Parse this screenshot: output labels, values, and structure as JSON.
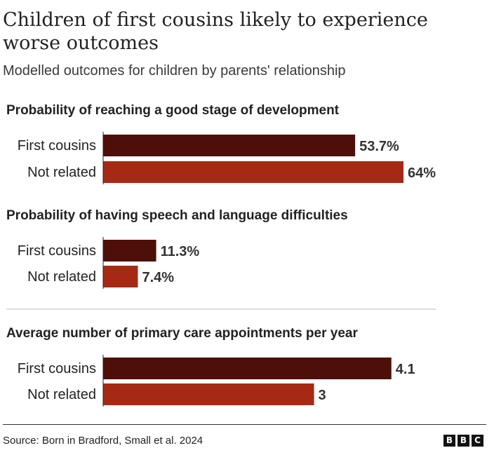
{
  "header": {
    "title": "Children of first cousins likely to experience worse outcomes",
    "subtitle": "Modelled outcomes for children by parents' relationship"
  },
  "footer": {
    "source": "Source: Born in Bradford, Small et al. 2024",
    "logo": [
      "B",
      "B",
      "C"
    ]
  },
  "colors": {
    "first_cousins": "#4e0f08",
    "not_related": "#a62a13",
    "text": "#222222"
  },
  "chart_data": [
    {
      "type": "bar",
      "orientation": "horizontal",
      "title": "Probability of reaching a good stage of development",
      "categories": [
        "First cousins",
        "Not related"
      ],
      "values": [
        53.7,
        64
      ],
      "labels": [
        "53.7%",
        "64%"
      ],
      "xlim": [
        0,
        80
      ]
    },
    {
      "type": "bar",
      "orientation": "horizontal",
      "title": "Probability of having speech and language difficulties",
      "categories": [
        "First cousins",
        "Not related"
      ],
      "values": [
        11.3,
        7.4
      ],
      "labels": [
        "11.3%",
        "7.4%"
      ],
      "xlim": [
        0,
        80
      ]
    },
    {
      "type": "bar",
      "orientation": "horizontal",
      "title": "Average number of primary care appointments per year",
      "categories": [
        "First cousins",
        "Not related"
      ],
      "values": [
        4.1,
        3
      ],
      "labels": [
        "4.1",
        "3"
      ],
      "xlim": [
        0,
        5.34
      ]
    }
  ]
}
